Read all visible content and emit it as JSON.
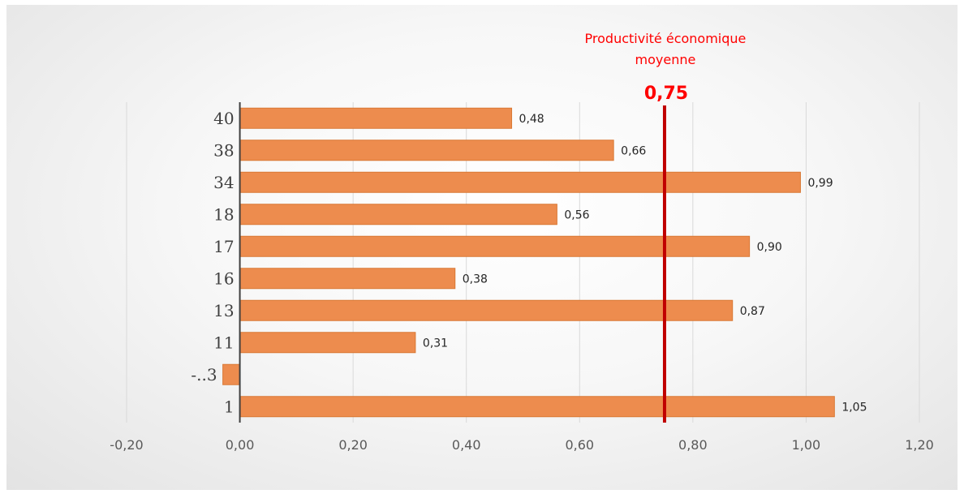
{
  "chart_data": {
    "type": "bar",
    "orientation": "horizontal",
    "categories": [
      "40",
      "38",
      "34",
      "18",
      "17",
      "16",
      "13",
      "11",
      "-..3",
      "1"
    ],
    "values": [
      0.48,
      0.66,
      0.99,
      0.56,
      0.9,
      0.38,
      0.87,
      0.31,
      -0.03,
      1.05
    ],
    "data_labels": [
      "0,48",
      "0,66",
      "0,99",
      "0,56",
      "0,90",
      "0,38",
      "0,87",
      "0,31",
      "",
      "1,05"
    ],
    "xlim": [
      -0.2,
      1.2
    ],
    "x_ticks": [
      -0.2,
      0.0,
      0.2,
      0.4,
      0.6,
      0.8,
      1.0,
      1.2
    ],
    "x_tick_labels": [
      "-0,20",
      "0,00",
      "0,20",
      "0,40",
      "0,60",
      "0,80",
      "1,00",
      "1,20"
    ],
    "grid": "vertical",
    "legend": "none",
    "reference_line": {
      "value": 0.75,
      "title": "Productivité économique moyenne",
      "label_lines": [
        "Productivité économique",
        "moyenne"
      ],
      "value_label": "0,75"
    },
    "colors": {
      "bar_fill": "#ED8C4E",
      "bar_stroke": "#D97834",
      "reference_line": "#C00000",
      "reference_label": "#FF0000",
      "grid": "#D9D9D9",
      "axis": "#404040"
    }
  }
}
